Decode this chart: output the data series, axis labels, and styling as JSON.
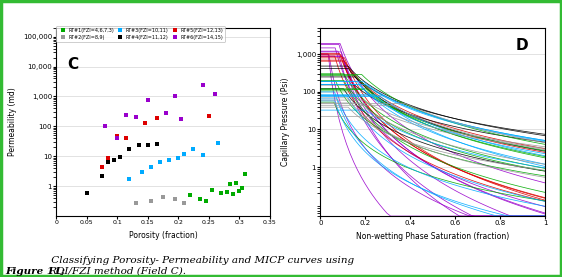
{
  "left_panel_label": "C",
  "right_panel_label": "D",
  "xlabel_left": "Porosity (fraction)",
  "ylabel_left": "Permeability (md)",
  "xlabel_right": "Non-wetting Phase Saturation (fraction)",
  "ylabel_right": "Capillary Pressure (Psi)",
  "caption_bold": "Figure 11:",
  "caption_normal": " Classifying Porosity- Permeability and MICP curves using\nRQI/FZI method (Field C).",
  "legend_entries": [
    {
      "label": "RT#1(FZI=4,6,7,3)",
      "color": "#00aa00"
    },
    {
      "label": "RT#2(FZI=8,9)",
      "color": "#999999"
    },
    {
      "label": "RT#3(FZI=10,11)",
      "color": "#00aaff"
    },
    {
      "label": "RT#4(FZI=11,12)",
      "color": "#000000"
    },
    {
      "label": "RT#5(FZI=12,13)",
      "color": "#dd0000"
    },
    {
      "label": "RT#6(FZI=14,15)",
      "color": "#9900cc"
    }
  ],
  "scatter_data": {
    "RT1": {
      "color": "#00aa00",
      "porosity": [
        0.22,
        0.235,
        0.245,
        0.255,
        0.27,
        0.28,
        0.285,
        0.29,
        0.295,
        0.3,
        0.305,
        0.31
      ],
      "perm": [
        0.5,
        0.38,
        0.32,
        0.75,
        0.6,
        0.65,
        1.2,
        0.55,
        1.3,
        0.7,
        0.9,
        2.5
      ]
    },
    "RT2": {
      "color": "#999999",
      "porosity": [
        0.13,
        0.155,
        0.175,
        0.195,
        0.21
      ],
      "perm": [
        0.28,
        0.32,
        0.45,
        0.38,
        0.28
      ]
    },
    "RT3": {
      "color": "#00aaff",
      "porosity": [
        0.12,
        0.14,
        0.155,
        0.17,
        0.185,
        0.2,
        0.21,
        0.225,
        0.24,
        0.265
      ],
      "perm": [
        1.8,
        3.0,
        4.5,
        6.5,
        7.5,
        9.0,
        12.0,
        17.0,
        11.0,
        27.0
      ]
    },
    "RT4": {
      "color": "#000000",
      "porosity": [
        0.05,
        0.075,
        0.085,
        0.095,
        0.105,
        0.12,
        0.135,
        0.15,
        0.165
      ],
      "perm": [
        0.6,
        2.2,
        6.5,
        7.5,
        9.5,
        18.0,
        23.0,
        24.0,
        26.0
      ]
    },
    "RT5": {
      "color": "#dd0000",
      "porosity": [
        0.075,
        0.085,
        0.1,
        0.115,
        0.145,
        0.165,
        0.25
      ],
      "perm": [
        4.5,
        9.0,
        48.0,
        42.0,
        125.0,
        190.0,
        220.0
      ]
    },
    "RT6": {
      "color": "#9900cc",
      "porosity": [
        0.08,
        0.1,
        0.115,
        0.13,
        0.15,
        0.18,
        0.195,
        0.205,
        0.24,
        0.26
      ],
      "perm": [
        100.0,
        42.0,
        240.0,
        210.0,
        780.0,
        290.0,
        1050.0,
        170.0,
        2400.0,
        1200.0
      ]
    }
  },
  "micp_groups": [
    {
      "color": "#9900cc",
      "n": 9,
      "entry_lo": 800,
      "entry_hi": 2000,
      "sw_entry_lo": 0.03,
      "sw_entry_hi": 0.12,
      "lamb_lo": 0.18,
      "lamb_hi": 0.32
    },
    {
      "color": "#dd0000",
      "n": 6,
      "entry_lo": 300,
      "entry_hi": 1200,
      "sw_entry_lo": 0.05,
      "sw_entry_hi": 0.18,
      "lamb_lo": 0.25,
      "lamb_hi": 0.42
    },
    {
      "color": "#000000",
      "n": 5,
      "entry_lo": 100,
      "entry_hi": 500,
      "sw_entry_lo": 0.08,
      "sw_entry_hi": 0.25,
      "lamb_lo": 0.35,
      "lamb_hi": 0.55
    },
    {
      "color": "#00aa00",
      "n": 9,
      "entry_lo": 50,
      "entry_hi": 300,
      "sw_entry_lo": 0.05,
      "sw_entry_hi": 0.22,
      "lamb_lo": 0.3,
      "lamb_hi": 0.5
    },
    {
      "color": "#00aaff",
      "n": 12,
      "entry_lo": 30,
      "entry_hi": 200,
      "sw_entry_lo": 0.05,
      "sw_entry_hi": 0.3,
      "lamb_lo": 0.28,
      "lamb_hi": 0.48
    },
    {
      "color": "#999999",
      "n": 7,
      "entry_lo": 20,
      "entry_hi": 100,
      "sw_entry_lo": 0.1,
      "sw_entry_hi": 0.4,
      "lamb_lo": 0.4,
      "lamb_hi": 0.65
    }
  ],
  "bg_color": "#ffffff",
  "border_color": "#33bb33",
  "yticks_left": [
    1,
    10,
    100,
    1000,
    10000,
    100000
  ],
  "ytick_labels_left": [
    "1",
    "10",
    "100",
    "1,000",
    "10,000",
    "100,000"
  ],
  "yticks_right": [
    1,
    10,
    100,
    1000
  ],
  "ytick_labels_right": [
    "1",
    "10",
    "100",
    "1,000"
  ],
  "xticks_left": [
    0,
    0.05,
    0.1,
    0.15,
    0.2,
    0.25,
    0.3,
    0.35
  ],
  "xtick_labels_left": [
    "0",
    "0.05",
    "0.1",
    "0.15",
    "0.2",
    "0.25",
    "0.3",
    "0.35"
  ],
  "xticks_right": [
    0,
    0.2,
    0.4,
    0.6,
    0.8,
    1
  ],
  "xtick_labels_right": [
    "0",
    "0.2",
    "0.4",
    "0.6",
    "0.8",
    "1"
  ]
}
